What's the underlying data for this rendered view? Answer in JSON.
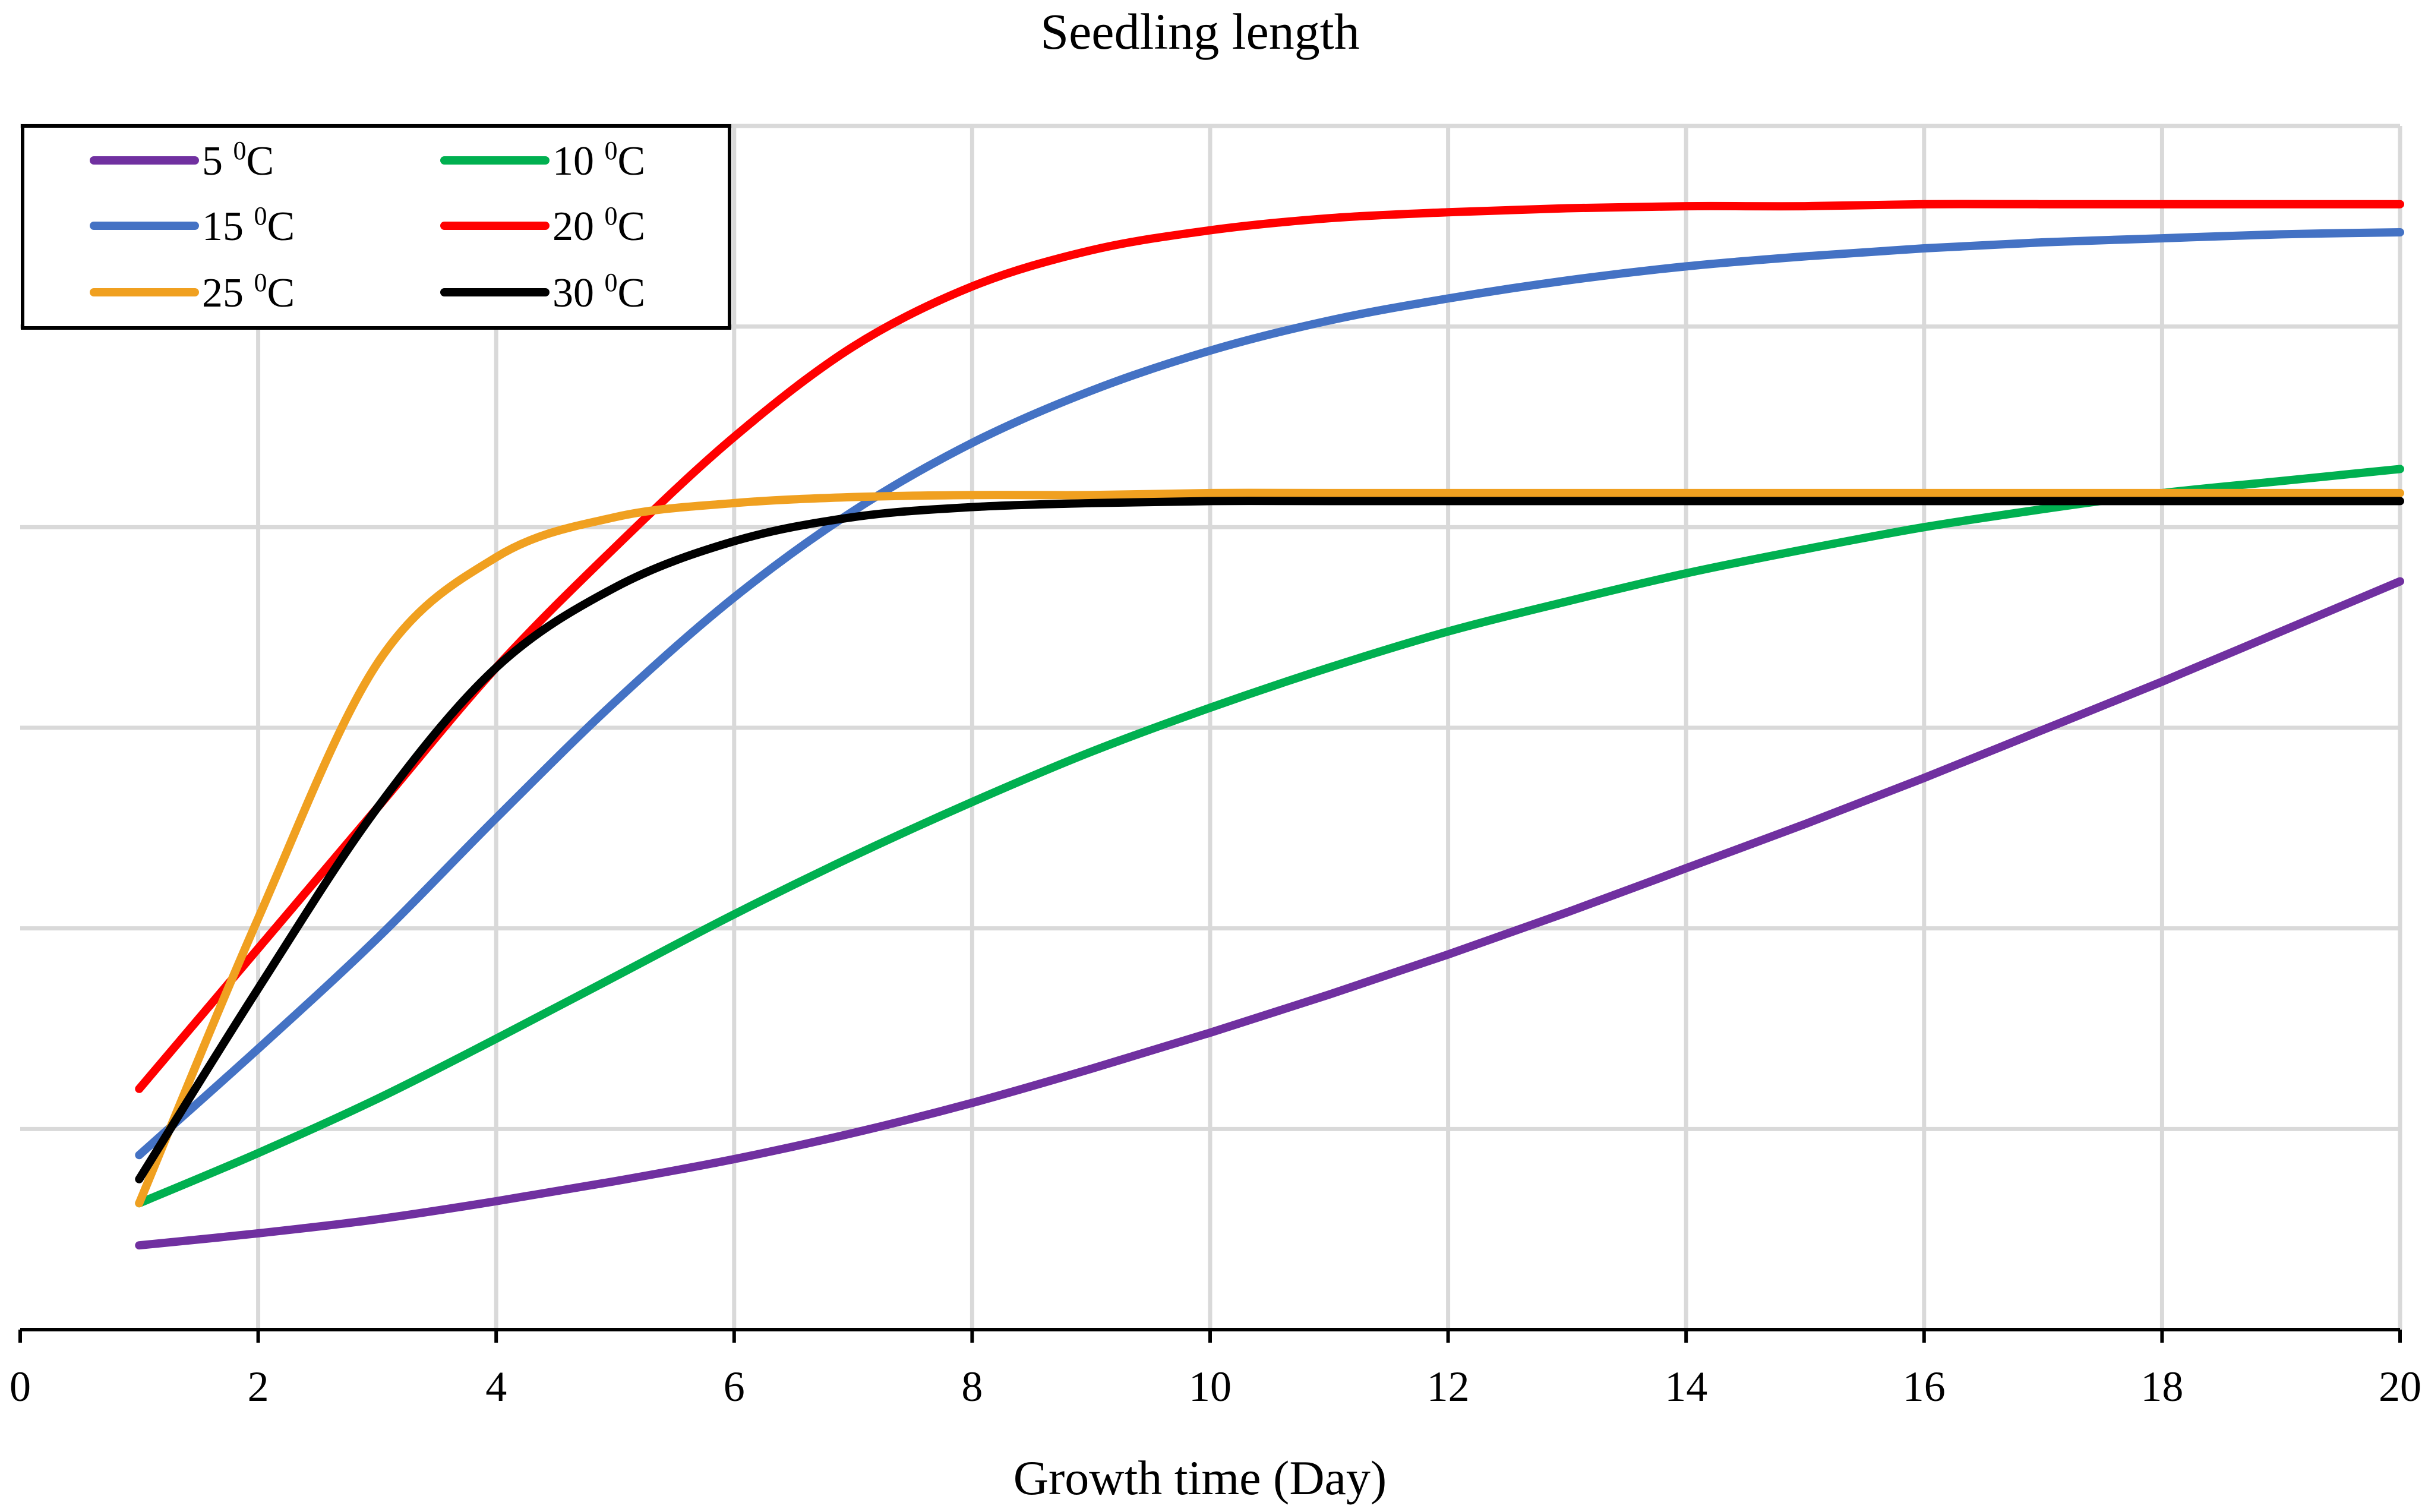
{
  "chart_data": {
    "type": "line",
    "title": "Seedling length",
    "xlabel": "Growth time (Day)",
    "ylabel": "",
    "xlim": [
      0,
      20
    ],
    "ylim": [
      0,
      6
    ],
    "x_ticks": [
      0,
      2,
      4,
      6,
      8,
      10,
      12,
      14,
      16,
      18,
      20
    ],
    "y_ticks_labeled": false,
    "grid": true,
    "legend_position": "top-left",
    "x": [
      1,
      2,
      3,
      4,
      5,
      6,
      7,
      8,
      9,
      10,
      11,
      12,
      13,
      14,
      15,
      16,
      17,
      18,
      19,
      20
    ],
    "series": [
      {
        "name": "5 ⁰C",
        "color": "#7030a0",
        "values": [
          0.42,
          0.48,
          0.55,
          0.64,
          0.74,
          0.85,
          0.98,
          1.13,
          1.3,
          1.48,
          1.67,
          1.87,
          2.08,
          2.3,
          2.52,
          2.75,
          2.99,
          3.23,
          3.48,
          3.73
        ]
      },
      {
        "name": "10 ⁰C",
        "color": "#00b050",
        "values": [
          0.63,
          0.88,
          1.15,
          1.45,
          1.76,
          2.07,
          2.36,
          2.63,
          2.88,
          3.1,
          3.3,
          3.48,
          3.63,
          3.77,
          3.89,
          4.0,
          4.09,
          4.17,
          4.23,
          4.29
        ]
      },
      {
        "name": "15 ⁰C",
        "color": "#4472c4",
        "values": [
          0.87,
          1.4,
          1.95,
          2.55,
          3.13,
          3.65,
          4.08,
          4.42,
          4.68,
          4.88,
          5.03,
          5.14,
          5.23,
          5.3,
          5.35,
          5.39,
          5.42,
          5.44,
          5.46,
          5.47
        ]
      },
      {
        "name": "20 ⁰C",
        "color": "#ff0000",
        "values": [
          1.2,
          1.9,
          2.6,
          3.3,
          3.9,
          4.45,
          4.9,
          5.2,
          5.38,
          5.48,
          5.54,
          5.57,
          5.59,
          5.6,
          5.6,
          5.61,
          5.61,
          5.61,
          5.61,
          5.61
        ]
      },
      {
        "name": "25 ⁰C",
        "color": "#f0a020",
        "values": [
          0.63,
          2.05,
          3.32,
          3.85,
          4.05,
          4.12,
          4.15,
          4.16,
          4.16,
          4.17,
          4.17,
          4.17,
          4.17,
          4.17,
          4.17,
          4.17,
          4.17,
          4.17,
          4.17,
          4.17
        ]
      },
      {
        "name": "30 ⁰C",
        "color": "#000000",
        "values": [
          0.75,
          1.7,
          2.6,
          3.3,
          3.7,
          3.93,
          4.05,
          4.1,
          4.12,
          4.13,
          4.13,
          4.13,
          4.13,
          4.13,
          4.13,
          4.13,
          4.13,
          4.13,
          4.13,
          4.13
        ]
      }
    ]
  }
}
